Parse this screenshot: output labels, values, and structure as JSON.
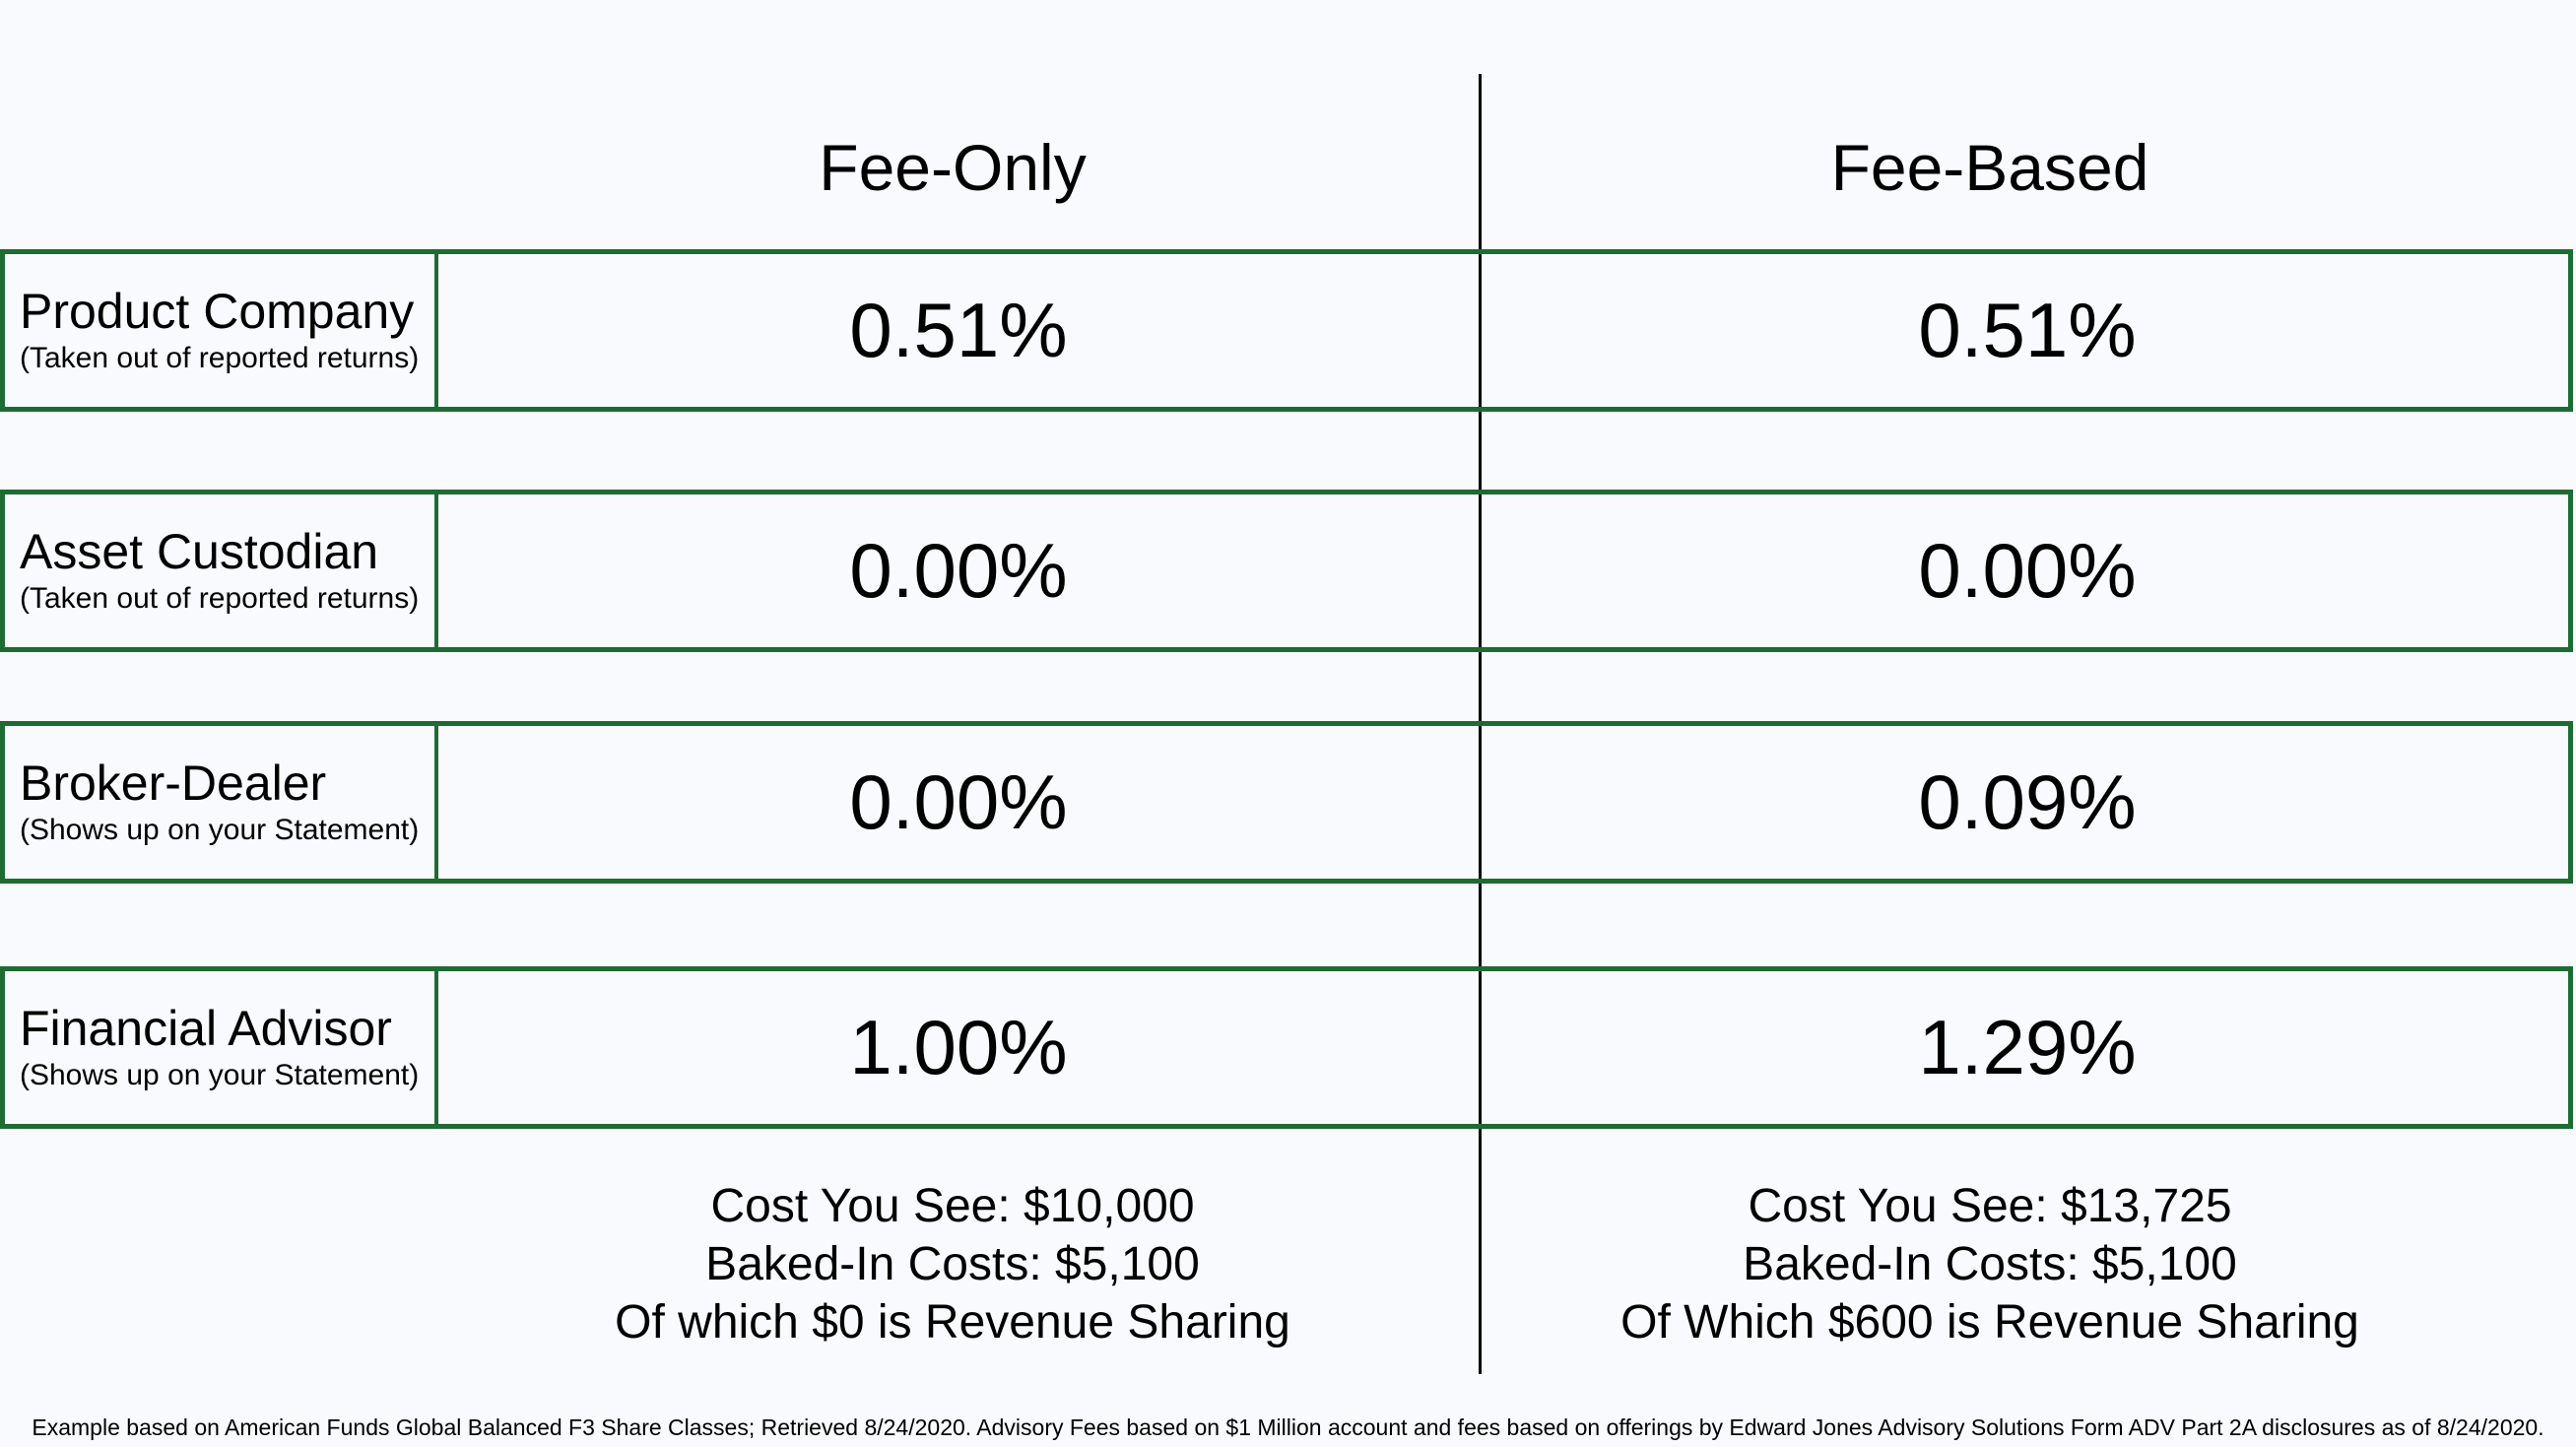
{
  "columns": {
    "left_header": "Fee-Only",
    "right_header": "Fee-Based"
  },
  "rows": [
    {
      "title": "Product Company",
      "subtitle": "(Taken out of reported returns)",
      "fee_only": "0.51%",
      "fee_based": "0.51%"
    },
    {
      "title": "Asset Custodian",
      "subtitle": "(Taken out of reported returns)",
      "fee_only": "0.00%",
      "fee_based": "0.00%"
    },
    {
      "title": "Broker-Dealer",
      "subtitle": "(Shows up on your Statement)",
      "fee_only": "0.00%",
      "fee_based": "0.09%"
    },
    {
      "title": "Financial Advisor",
      "subtitle": "(Shows up on your Statement)",
      "fee_only": "1.00%",
      "fee_based": "1.29%"
    }
  ],
  "summary": {
    "left": [
      "Cost You See: $10,000",
      "Baked-In Costs: $5,100",
      "Of which $0 is Revenue Sharing"
    ],
    "right": [
      "Cost You See: $13,725",
      "Baked-In Costs: $5,100",
      "Of Which $600 is Revenue Sharing"
    ]
  },
  "footnote": "Example based on American Funds Global Balanced F3 Share Classes; Retrieved 8/24/2020. Advisory Fees based on $1 Million account and fees based on offerings by Edward Jones Advisory Solutions Form ADV Part 2A disclosures as of 8/24/2020.",
  "colors": {
    "border": "#1e6b33",
    "background": "#f9fafe"
  }
}
